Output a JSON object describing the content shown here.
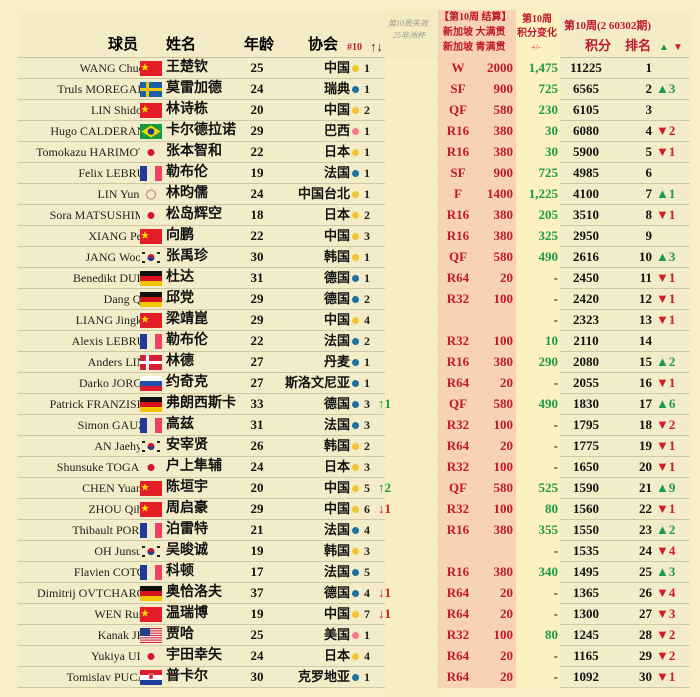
{
  "header": {
    "player": "球员",
    "name": "姓名",
    "age": "年龄",
    "assoc": "协会",
    "assoc_rank": "#10",
    "assoc_arrows": "↑↓",
    "expired_line1": "第10周失效",
    "expired_line2": "25非洲杯",
    "event_line1": "【第10周 结算】",
    "event_line2": "新加坡 大满贯",
    "event_line3": "新加坡 青满贯",
    "change_line1": "第10周",
    "change_line2": "积分变化",
    "change_line3": "+/-",
    "week_title": "第10周(2 60302期)",
    "points": "积分",
    "rank": "排名",
    "rank_up": "▲",
    "rank_down": "▼"
  },
  "colors": {
    "asia": "#f5c531",
    "europe": "#1f6fa0",
    "americas": "#ee7b86",
    "up": "#1c9a4a",
    "down": "#d01a2a",
    "event": "#c0182c",
    "event_bg": "#f8d3b3"
  },
  "rows": [
    {
      "en": "WANG Chuqin",
      "flag": "cn",
      "cn": "王楚钦",
      "age": "25",
      "assoc": "中国",
      "region": "asia",
      "ar": "1",
      "mv": "",
      "round": "W",
      "pts": "2000",
      "chg": "1,475",
      "tot": "11225",
      "rank": "1",
      "rd": ""
    },
    {
      "en": "Truls MOREGARD",
      "flag": "se",
      "cn": "莫雷加德",
      "age": "24",
      "assoc": "瑞典",
      "region": "europe",
      "ar": "1",
      "mv": "",
      "round": "SF",
      "pts": "900",
      "chg": "725",
      "tot": "6565",
      "rank": "2",
      "rd": "▲3"
    },
    {
      "en": "LIN Shidong",
      "flag": "cn",
      "cn": "林诗栋",
      "age": "20",
      "assoc": "中国",
      "region": "asia",
      "ar": "2",
      "mv": "",
      "round": "QF",
      "pts": "580",
      "chg": "230",
      "tot": "6105",
      "rank": "3",
      "rd": ""
    },
    {
      "en": "Hugo CALDERANO",
      "flag": "br",
      "cn": "卡尔德拉诺",
      "age": "29",
      "assoc": "巴西",
      "region": "americas",
      "ar": "1",
      "mv": "",
      "round": "R16",
      "pts": "380",
      "chg": "30",
      "tot": "6080",
      "rank": "4",
      "rd": "▼2"
    },
    {
      "en": "Tomokazu HARIMOTO",
      "flag": "jp",
      "cn": "张本智和",
      "age": "22",
      "assoc": "日本",
      "region": "asia",
      "ar": "1",
      "mv": "",
      "round": "R16",
      "pts": "380",
      "chg": "30",
      "tot": "5900",
      "rank": "5",
      "rd": "▼1"
    },
    {
      "en": "Felix LEBRUN",
      "flag": "fr",
      "cn": "勒布伦",
      "age": "19",
      "assoc": "法国",
      "region": "europe",
      "ar": "1",
      "mv": "",
      "round": "SF",
      "pts": "900",
      "chg": "725",
      "tot": "4985",
      "rank": "6",
      "rd": ""
    },
    {
      "en": "LIN Yun-Ju",
      "flag": "tpe",
      "cn": "林昀儒",
      "age": "24",
      "assoc": "中国台北",
      "region": "asia",
      "ar": "1",
      "mv": "",
      "round": "F",
      "pts": "1400",
      "chg": "1,225",
      "tot": "4100",
      "rank": "7",
      "rd": "▲1"
    },
    {
      "en": "Sora MATSUSHIMA",
      "flag": "jp",
      "cn": "松岛辉空",
      "age": "18",
      "assoc": "日本",
      "region": "asia",
      "ar": "2",
      "mv": "",
      "round": "R16",
      "pts": "380",
      "chg": "205",
      "tot": "3510",
      "rank": "8",
      "rd": "▼1"
    },
    {
      "en": "XIANG Peng",
      "flag": "cn",
      "cn": "向鹏",
      "age": "22",
      "assoc": "中国",
      "region": "asia",
      "ar": "3",
      "mv": "",
      "round": "R16",
      "pts": "380",
      "chg": "325",
      "tot": "2950",
      "rank": "9",
      "rd": ""
    },
    {
      "en": "JANG Woojin",
      "flag": "kr",
      "cn": "张禹珍",
      "age": "30",
      "assoc": "韩国",
      "region": "asia",
      "ar": "1",
      "mv": "",
      "round": "QF",
      "pts": "580",
      "chg": "490",
      "tot": "2616",
      "rank": "10",
      "rd": "▲3"
    },
    {
      "en": "Benedikt DUDA",
      "flag": "de",
      "cn": "杜达",
      "age": "31",
      "assoc": "德国",
      "region": "europe",
      "ar": "1",
      "mv": "",
      "round": "R64",
      "pts": "20",
      "chg": "-",
      "tot": "2450",
      "rank": "11",
      "rd": "▼1"
    },
    {
      "en": "Dang QIU",
      "flag": "de",
      "cn": "邱党",
      "age": "29",
      "assoc": "德国",
      "region": "europe",
      "ar": "2",
      "mv": "",
      "round": "R32",
      "pts": "100",
      "chg": "-",
      "tot": "2420",
      "rank": "12",
      "rd": "▼1"
    },
    {
      "en": "LIANG Jingkun",
      "flag": "cn",
      "cn": "梁靖崑",
      "age": "29",
      "assoc": "中国",
      "region": "asia",
      "ar": "4",
      "mv": "",
      "round": "",
      "pts": "",
      "chg": "-",
      "tot": "2323",
      "rank": "13",
      "rd": "▼1"
    },
    {
      "en": "Alexis LEBRUN",
      "flag": "fr",
      "cn": "勒布伦",
      "age": "22",
      "assoc": "法国",
      "region": "europe",
      "ar": "2",
      "mv": "",
      "round": "R32",
      "pts": "100",
      "chg": "10",
      "tot": "2110",
      "rank": "14",
      "rd": ""
    },
    {
      "en": "Anders LIND",
      "flag": "dk",
      "cn": "林德",
      "age": "27",
      "assoc": "丹麦",
      "region": "europe",
      "ar": "1",
      "mv": "",
      "round": "R16",
      "pts": "380",
      "chg": "290",
      "tot": "2080",
      "rank": "15",
      "rd": "▲2"
    },
    {
      "en": "Darko JORGIC",
      "flag": "si",
      "cn": "约奇克",
      "age": "27",
      "assoc": "斯洛文尼亚",
      "region": "europe",
      "ar": "1",
      "mv": "",
      "round": "R64",
      "pts": "20",
      "chg": "-",
      "tot": "2055",
      "rank": "16",
      "rd": "▼1"
    },
    {
      "en": "Patrick FRANZISKA",
      "flag": "de",
      "cn": "弗朗西斯卡",
      "age": "33",
      "assoc": "德国",
      "region": "europe",
      "ar": "3",
      "mv": "↑1",
      "round": "QF",
      "pts": "580",
      "chg": "490",
      "tot": "1830",
      "rank": "17",
      "rd": "▲6"
    },
    {
      "en": "Simon GAUZY",
      "flag": "fr",
      "cn": "高兹",
      "age": "31",
      "assoc": "法国",
      "region": "europe",
      "ar": "3",
      "mv": "",
      "round": "R32",
      "pts": "100",
      "chg": "-",
      "tot": "1795",
      "rank": "18",
      "rd": "▼2"
    },
    {
      "en": "AN Jaehyun",
      "flag": "kr",
      "cn": "安宰贤",
      "age": "26",
      "assoc": "韩国",
      "region": "asia",
      "ar": "2",
      "mv": "",
      "round": "R64",
      "pts": "20",
      "chg": "-",
      "tot": "1775",
      "rank": "19",
      "rd": "▼1"
    },
    {
      "en": "Shunsuke TOGAMI",
      "flag": "jp",
      "cn": "户上隼辅",
      "age": "24",
      "assoc": "日本",
      "region": "asia",
      "ar": "3",
      "mv": "",
      "round": "R32",
      "pts": "100",
      "chg": "-",
      "tot": "1650",
      "rank": "20",
      "rd": "▼1"
    },
    {
      "en": "CHEN Yuanyu",
      "flag": "cn",
      "cn": "陈垣宇",
      "age": "20",
      "assoc": "中国",
      "region": "asia",
      "ar": "5",
      "mv": "↑2",
      "round": "QF",
      "pts": "580",
      "chg": "525",
      "tot": "1590",
      "rank": "21",
      "rd": "▲9"
    },
    {
      "en": "ZHOU Qihao",
      "flag": "cn",
      "cn": "周启豪",
      "age": "29",
      "assoc": "中国",
      "region": "asia",
      "ar": "6",
      "mv": "↓1",
      "round": "R32",
      "pts": "100",
      "chg": "80",
      "tot": "1560",
      "rank": "22",
      "rd": "▼1"
    },
    {
      "en": "Thibault PORET",
      "flag": "fr",
      "cn": "泊雷特",
      "age": "21",
      "assoc": "法国",
      "region": "europe",
      "ar": "4",
      "mv": "",
      "round": "R16",
      "pts": "380",
      "chg": "355",
      "tot": "1550",
      "rank": "23",
      "rd": "▲2"
    },
    {
      "en": "OH Junsung",
      "flag": "kr",
      "cn": "吴晙诚",
      "age": "19",
      "assoc": "韩国",
      "region": "asia",
      "ar": "3",
      "mv": "",
      "round": "",
      "pts": "",
      "chg": "-",
      "tot": "1535",
      "rank": "24",
      "rd": "▼4"
    },
    {
      "en": "Flavien COTON",
      "flag": "fr",
      "cn": "科顿",
      "age": "17",
      "assoc": "法国",
      "region": "europe",
      "ar": "5",
      "mv": "",
      "round": "R16",
      "pts": "380",
      "chg": "340",
      "tot": "1495",
      "rank": "25",
      "rd": "▲3"
    },
    {
      "en": "Dimitrij OVTCHAROV",
      "flag": "de",
      "cn": "奥恰洛夫",
      "age": "37",
      "assoc": "德国",
      "region": "europe",
      "ar": "4",
      "mv": "↓1",
      "round": "R64",
      "pts": "20",
      "chg": "-",
      "tot": "1365",
      "rank": "26",
      "rd": "▼4"
    },
    {
      "en": "WEN Ruibo",
      "flag": "cn",
      "cn": "温瑞博",
      "age": "19",
      "assoc": "中国",
      "region": "asia",
      "ar": "7",
      "mv": "↓1",
      "round": "R64",
      "pts": "20",
      "chg": "-",
      "tot": "1300",
      "rank": "27",
      "rd": "▼3"
    },
    {
      "en": "Kanak JHA",
      "flag": "us",
      "cn": "贾哈",
      "age": "25",
      "assoc": "美国",
      "region": "americas",
      "ar": "1",
      "mv": "",
      "round": "R32",
      "pts": "100",
      "chg": "80",
      "tot": "1245",
      "rank": "28",
      "rd": "▼2"
    },
    {
      "en": "Yukiya UDA",
      "flag": "jp",
      "cn": "宇田幸矢",
      "age": "24",
      "assoc": "日本",
      "region": "asia",
      "ar": "4",
      "mv": "",
      "round": "R64",
      "pts": "20",
      "chg": "-",
      "tot": "1165",
      "rank": "29",
      "rd": "▼2"
    },
    {
      "en": "Tomislav PUCAR",
      "flag": "hr",
      "cn": "普卡尔",
      "age": "30",
      "assoc": "克罗地亚",
      "region": "europe",
      "ar": "1",
      "mv": "",
      "round": "R64",
      "pts": "20",
      "chg": "-",
      "tot": "1092",
      "rank": "30",
      "rd": "▼1"
    }
  ]
}
